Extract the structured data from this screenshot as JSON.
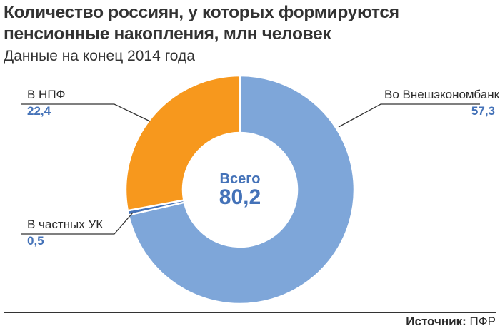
{
  "header": {
    "title_line1": "Количество россиян, у которых формируются",
    "title_line2": "пенсионные накопления, млн человек",
    "subtitle": "Данные на конец 2014 года"
  },
  "center": {
    "caption": "Всего",
    "value": "80,2"
  },
  "footer": {
    "source_label": "Источник:",
    "source_value": "ПФР"
  },
  "colors": {
    "value_text": "#4472b8",
    "leader_line": "#333333"
  },
  "chart_data": {
    "type": "pie",
    "donut": true,
    "total": 80.2,
    "slices": [
      {
        "name": "Во Внешэкономбанке",
        "value": 57.3,
        "value_label": "57,3",
        "color": "#7ea6d9"
      },
      {
        "name": "В частных УК",
        "value": 0.5,
        "value_label": "0,5",
        "color": "#4472b8"
      },
      {
        "name": "В НПФ",
        "value": 22.4,
        "value_label": "22,4",
        "color": "#f7981d"
      }
    ]
  }
}
